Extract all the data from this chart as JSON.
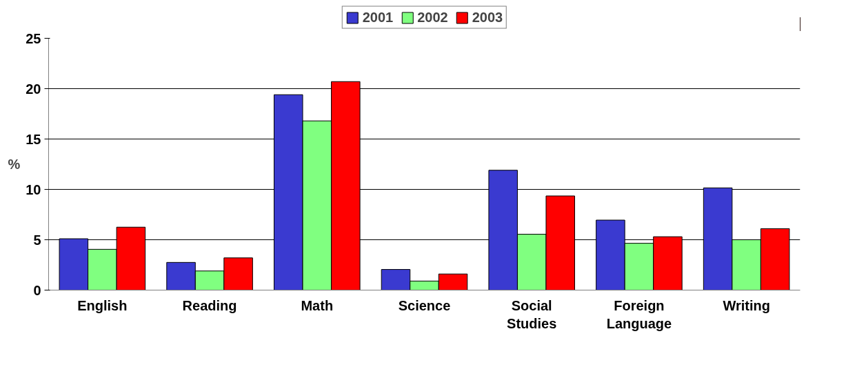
{
  "chart_data": {
    "type": "bar",
    "ylabel": "%",
    "categories": [
      "English",
      "Reading",
      "Math",
      "Science",
      "Social Studies",
      "Foreign Language",
      "Writing"
    ],
    "series": [
      {
        "name": "2001",
        "color": "#3a3ad0",
        "values": [
          5.1,
          2.75,
          19.4,
          2.05,
          11.9,
          6.95,
          10.15
        ]
      },
      {
        "name": "2002",
        "color": "#80ff80",
        "values": [
          4.05,
          1.9,
          16.8,
          0.9,
          5.55,
          4.65,
          5.0
        ]
      },
      {
        "name": "2003",
        "color": "#ff0000",
        "values": [
          6.25,
          3.2,
          20.7,
          1.6,
          9.35,
          5.3,
          6.1
        ]
      }
    ],
    "ylim": [
      0,
      25
    ],
    "yticks": [
      0,
      5,
      10,
      15,
      20,
      25
    ],
    "grid": "y",
    "legend": "top"
  }
}
